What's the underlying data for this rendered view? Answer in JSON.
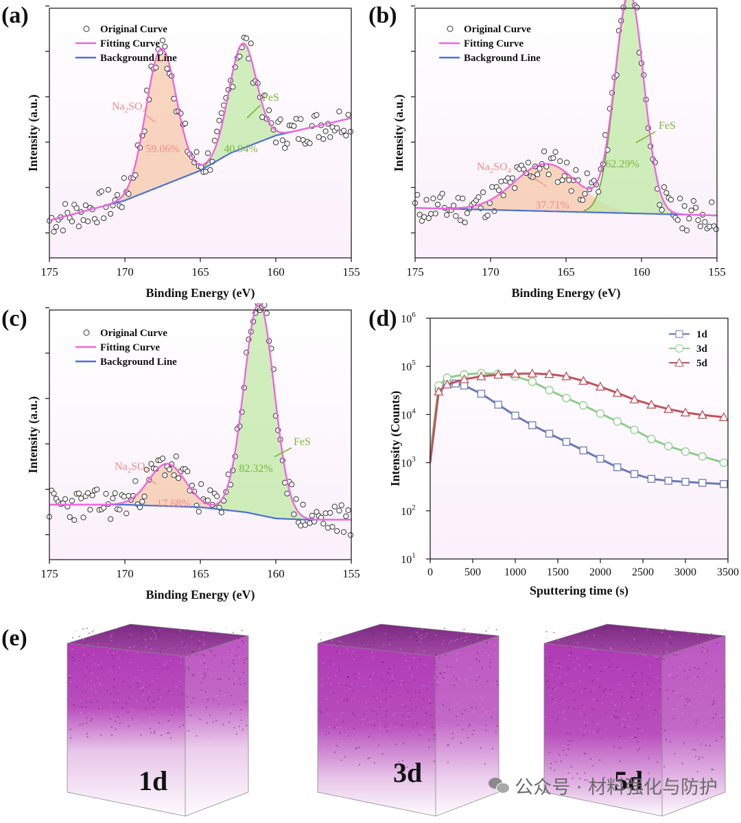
{
  "panel_labels": {
    "a": "(a)",
    "b": "(b)",
    "c": "(c)",
    "d": "(d)",
    "e": "(e)"
  },
  "legend": {
    "original": "Original Curve",
    "fitting": "Fitting Curve",
    "background": "Background Line"
  },
  "colors": {
    "fit": "#ee66dd",
    "background": "#4a6fd6",
    "na2so4_fill": "#f6c8a8",
    "fes_fill": "#bfeaa4",
    "fes_line": "#62a82a",
    "na2so4_text": "#f08a8a",
    "fes_text": "#7ab63a",
    "plot_bg": "#fbf0fb",
    "s1d": "#6a78b8",
    "s3d": "#8ecb8e",
    "s5d": "#c0505a",
    "cube": "#b03ab5"
  },
  "chart_data": [
    {
      "type": "scatter",
      "panel": "a",
      "xlabel": "Binding Energy (eV)",
      "ylabel": "Intensity (a.u.)",
      "xlim": [
        175,
        155
      ],
      "xticks": [
        175,
        170,
        165,
        160,
        155
      ],
      "background_line": {
        "x": [
          175,
          170,
          165,
          163,
          160,
          155
        ],
        "y": [
          0.15,
          0.23,
          0.35,
          0.42,
          0.49,
          0.56
        ]
      },
      "peaks": [
        {
          "name": "Na2SO4",
          "label": "Na2SO4",
          "percent": "59.06%",
          "center": 167.6,
          "height": 0.55,
          "sigma": 1.0
        },
        {
          "name": "FeS",
          "label": "FeS",
          "percent": "40.94%",
          "center": 162.2,
          "height": 0.42,
          "sigma": 0.9
        }
      ]
    },
    {
      "type": "scatter",
      "panel": "b",
      "xlabel": "Binding Energy (eV)",
      "ylabel": "Intensity (a.u.)",
      "xlim": [
        175,
        155
      ],
      "xticks": [
        175,
        170,
        165,
        160,
        155
      ],
      "background_line": {
        "x": [
          175,
          155
        ],
        "y": [
          0.2,
          0.17
        ]
      },
      "peaks": [
        {
          "name": "Na2SO4",
          "label": "Na2SO4",
          "percent": "37.71%",
          "center": 166.3,
          "height": 0.19,
          "sigma": 2.1
        },
        {
          "name": "FeS",
          "label": "FeS",
          "percent": "62.29%",
          "center": 160.8,
          "height": 0.88,
          "sigma": 0.95
        }
      ]
    },
    {
      "type": "scatter",
      "panel": "c",
      "xlabel": "Binding Energy (eV)",
      "ylabel": "Intensity (a.u.)",
      "xlim": [
        175,
        155
      ],
      "xticks": [
        175,
        170,
        165,
        160,
        155
      ],
      "background_line": {
        "x": [
          175,
          170,
          165,
          162,
          160,
          158,
          155
        ],
        "y": [
          0.22,
          0.22,
          0.21,
          0.19,
          0.165,
          0.16,
          0.16
        ]
      },
      "peaks": [
        {
          "name": "Na2SO4",
          "label": "Na2SO4",
          "percent": "17.68%",
          "center": 167.2,
          "height": 0.17,
          "sigma": 1.2
        },
        {
          "name": "FeS",
          "label": "FeS",
          "percent": "82.32%",
          "center": 161.1,
          "height": 0.85,
          "sigma": 1.0
        }
      ]
    },
    {
      "type": "line",
      "panel": "d",
      "xlabel": "Sputtering time (s)",
      "ylabel": "Intensity (Counts)",
      "xlim": [
        0,
        3500
      ],
      "xticks": [
        0,
        500,
        1000,
        1500,
        2000,
        2500,
        3000,
        3500
      ],
      "yscale": "log",
      "ylim": [
        10,
        1000000
      ],
      "yticks": [
        {
          "base": "10",
          "exp": "1"
        },
        {
          "base": "10",
          "exp": "2"
        },
        {
          "base": "10",
          "exp": "3"
        },
        {
          "base": "10",
          "exp": "4"
        },
        {
          "base": "10",
          "exp": "5"
        },
        {
          "base": "10",
          "exp": "6"
        }
      ],
      "legend_position": "top-right",
      "series": [
        {
          "name": "1d",
          "marker": "square",
          "x": [
            0,
            100,
            200,
            300,
            400,
            600,
            800,
            1000,
            1200,
            1400,
            1600,
            1800,
            2000,
            2200,
            2400,
            2600,
            2800,
            3000,
            3200,
            3450
          ],
          "y": [
            1200,
            35000,
            45000,
            44000,
            40000,
            27000,
            16000,
            9500,
            6000,
            4000,
            2700,
            1800,
            1200,
            800,
            580,
            460,
            420,
            400,
            380,
            360
          ]
        },
        {
          "name": "3d",
          "marker": "circle",
          "x": [
            0,
            100,
            200,
            400,
            600,
            800,
            1000,
            1200,
            1400,
            1600,
            1800,
            2000,
            2200,
            2400,
            2600,
            2800,
            3000,
            3200,
            3450
          ],
          "y": [
            1500,
            40000,
            58000,
            68000,
            72000,
            70000,
            62000,
            48000,
            32000,
            22000,
            15500,
            10500,
            7200,
            4800,
            3100,
            2200,
            1700,
            1350,
            1000
          ]
        },
        {
          "name": "5d",
          "marker": "triangle",
          "x": [
            0,
            100,
            200,
            400,
            600,
            800,
            1000,
            1200,
            1400,
            1600,
            1800,
            2000,
            2200,
            2400,
            2600,
            2800,
            3000,
            3200,
            3450
          ],
          "y": [
            1000,
            30000,
            42000,
            54000,
            62000,
            67000,
            70000,
            71000,
            69000,
            62000,
            50000,
            38000,
            28000,
            20500,
            16000,
            13000,
            11000,
            9800,
            8800
          ]
        }
      ]
    }
  ],
  "cubes": [
    {
      "label": "1d",
      "profile_depth": 0.62
    },
    {
      "label": "3d",
      "profile_depth": 0.78
    },
    {
      "label": "5d",
      "profile_depth": 0.86
    }
  ],
  "watermark": "公众号 · 材料强化与防护"
}
